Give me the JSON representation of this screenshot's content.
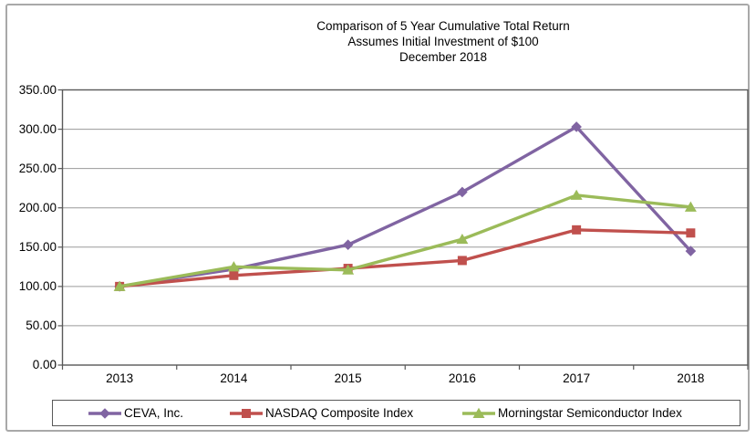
{
  "chart_data": {
    "type": "line",
    "title_lines": [
      "Comparison of 5 Year Cumulative Total Return",
      "Assumes Initial Investment of $100",
      "December 2018"
    ],
    "categories": [
      "2013",
      "2014",
      "2015",
      "2016",
      "2017",
      "2018"
    ],
    "series": [
      {
        "name": "CEVA, Inc.",
        "color": "#8064A2",
        "marker": "diamond",
        "values": [
          100,
          122,
          153,
          220,
          303,
          145
        ]
      },
      {
        "name": "NASDAQ Composite Index",
        "color": "#C0504D",
        "marker": "square",
        "values": [
          100,
          114,
          123,
          133,
          172,
          168
        ]
      },
      {
        "name": "Morningstar Semiconductor Index",
        "color": "#9BBB59",
        "marker": "triangle",
        "values": [
          100,
          125,
          121,
          160,
          216,
          201
        ]
      }
    ],
    "ylim": [
      0,
      350
    ],
    "ytick_step": 50,
    "ytick_labels": [
      "0.00",
      "50.00",
      "100.00",
      "150.00",
      "200.00",
      "250.00",
      "300.00",
      "350.00"
    ],
    "grid": true,
    "legend_position": "bottom",
    "colors": {
      "gridline": "#9a9a9a",
      "plot_border": "#595959",
      "outer_frame": "#a9a9a9",
      "text": "#000000"
    }
  }
}
